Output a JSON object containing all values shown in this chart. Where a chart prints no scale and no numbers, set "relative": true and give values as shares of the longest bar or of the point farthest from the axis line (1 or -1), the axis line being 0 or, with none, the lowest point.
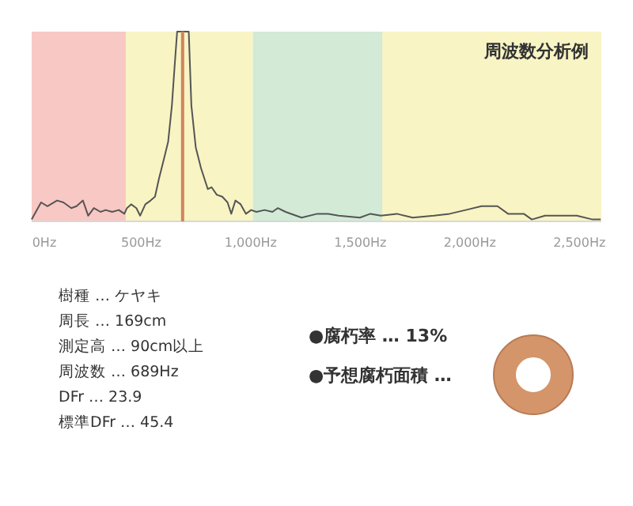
{
  "chart_data": [
    {
      "type": "line",
      "title": "周波数分析例",
      "relative": true,
      "color": "#555555",
      "x": [
        0,
        43,
        72,
        116,
        145,
        181,
        205,
        234,
        258,
        284,
        314,
        338,
        367,
        398,
        423,
        435,
        454,
        478,
        495,
        519,
        543,
        563,
        580,
        604,
        623,
        640,
        652,
        664,
        689,
        717,
        729,
        749,
        773,
        804,
        821,
        845,
        870,
        894,
        911,
        930,
        954,
        978,
        1002,
        1026,
        1063,
        1099,
        1123,
        1159,
        1232,
        1304,
        1353,
        1401,
        1498,
        1546,
        1594,
        1667,
        1739,
        1836,
        1908,
        1981,
        2053,
        2126,
        2174,
        2246,
        2283,
        2343,
        2415,
        2488,
        2560,
        2597
      ],
      "values": [
        0.01,
        0.1,
        0.08,
        0.11,
        0.1,
        0.07,
        0.08,
        0.11,
        0.03,
        0.07,
        0.05,
        0.06,
        0.05,
        0.06,
        0.04,
        0.07,
        0.09,
        0.07,
        0.03,
        0.09,
        0.11,
        0.13,
        0.22,
        0.33,
        0.42,
        0.61,
        0.81,
        1,
        1,
        1,
        0.61,
        0.39,
        0.28,
        0.17,
        0.18,
        0.14,
        0.13,
        0.1,
        0.04,
        0.11,
        0.09,
        0.04,
        0.06,
        0.05,
        0.06,
        0.05,
        0.07,
        0.05,
        0.02,
        0.04,
        0.04,
        0.03,
        0.02,
        0.04,
        0.03,
        0.04,
        0.02,
        0.03,
        0.04,
        0.06,
        0.08,
        0.08,
        0.04,
        0.04,
        0.01,
        0.03,
        0.03,
        0.03,
        0.01,
        0.01
      ],
      "xlim": [
        0,
        2600
      ],
      "xticks": [
        {
          "value": 0,
          "label": "0Hz"
        },
        {
          "value": 500,
          "label": "500Hz"
        },
        {
          "value": 1000,
          "label": "1,000Hz"
        },
        {
          "value": 1500,
          "label": "1,500Hz"
        },
        {
          "value": 2000,
          "label": "2,000Hz"
        },
        {
          "value": 2500,
          "label": "2,500Hz"
        }
      ],
      "bands": [
        {
          "axis": "x",
          "from": 0,
          "to": 430,
          "color": "#f8c8c4"
        },
        {
          "axis": "x",
          "from": 430,
          "to": 1010,
          "color": "#f8f4c4"
        },
        {
          "axis": "x",
          "from": 1010,
          "to": 1600,
          "color": "#d2ead6"
        },
        {
          "axis": "x",
          "from": 1600,
          "to": 2600,
          "color": "#f8f4c4"
        }
      ],
      "ref_lines": [
        {
          "axis": "x",
          "value": 689,
          "color": "#d0845a"
        }
      ],
      "grid": false
    },
    {
      "type": "other",
      "annotations": [
        "樹種 … ケヤキ",
        "周長 … 169cm",
        "測定高 … 90cm以上",
        "周波数 … 689Hz",
        "DFr … 23.9",
        "標準DFr … 45.4",
        "●腐朽率 … 13%",
        "●予想腐朽面積 …"
      ]
    }
  ]
}
